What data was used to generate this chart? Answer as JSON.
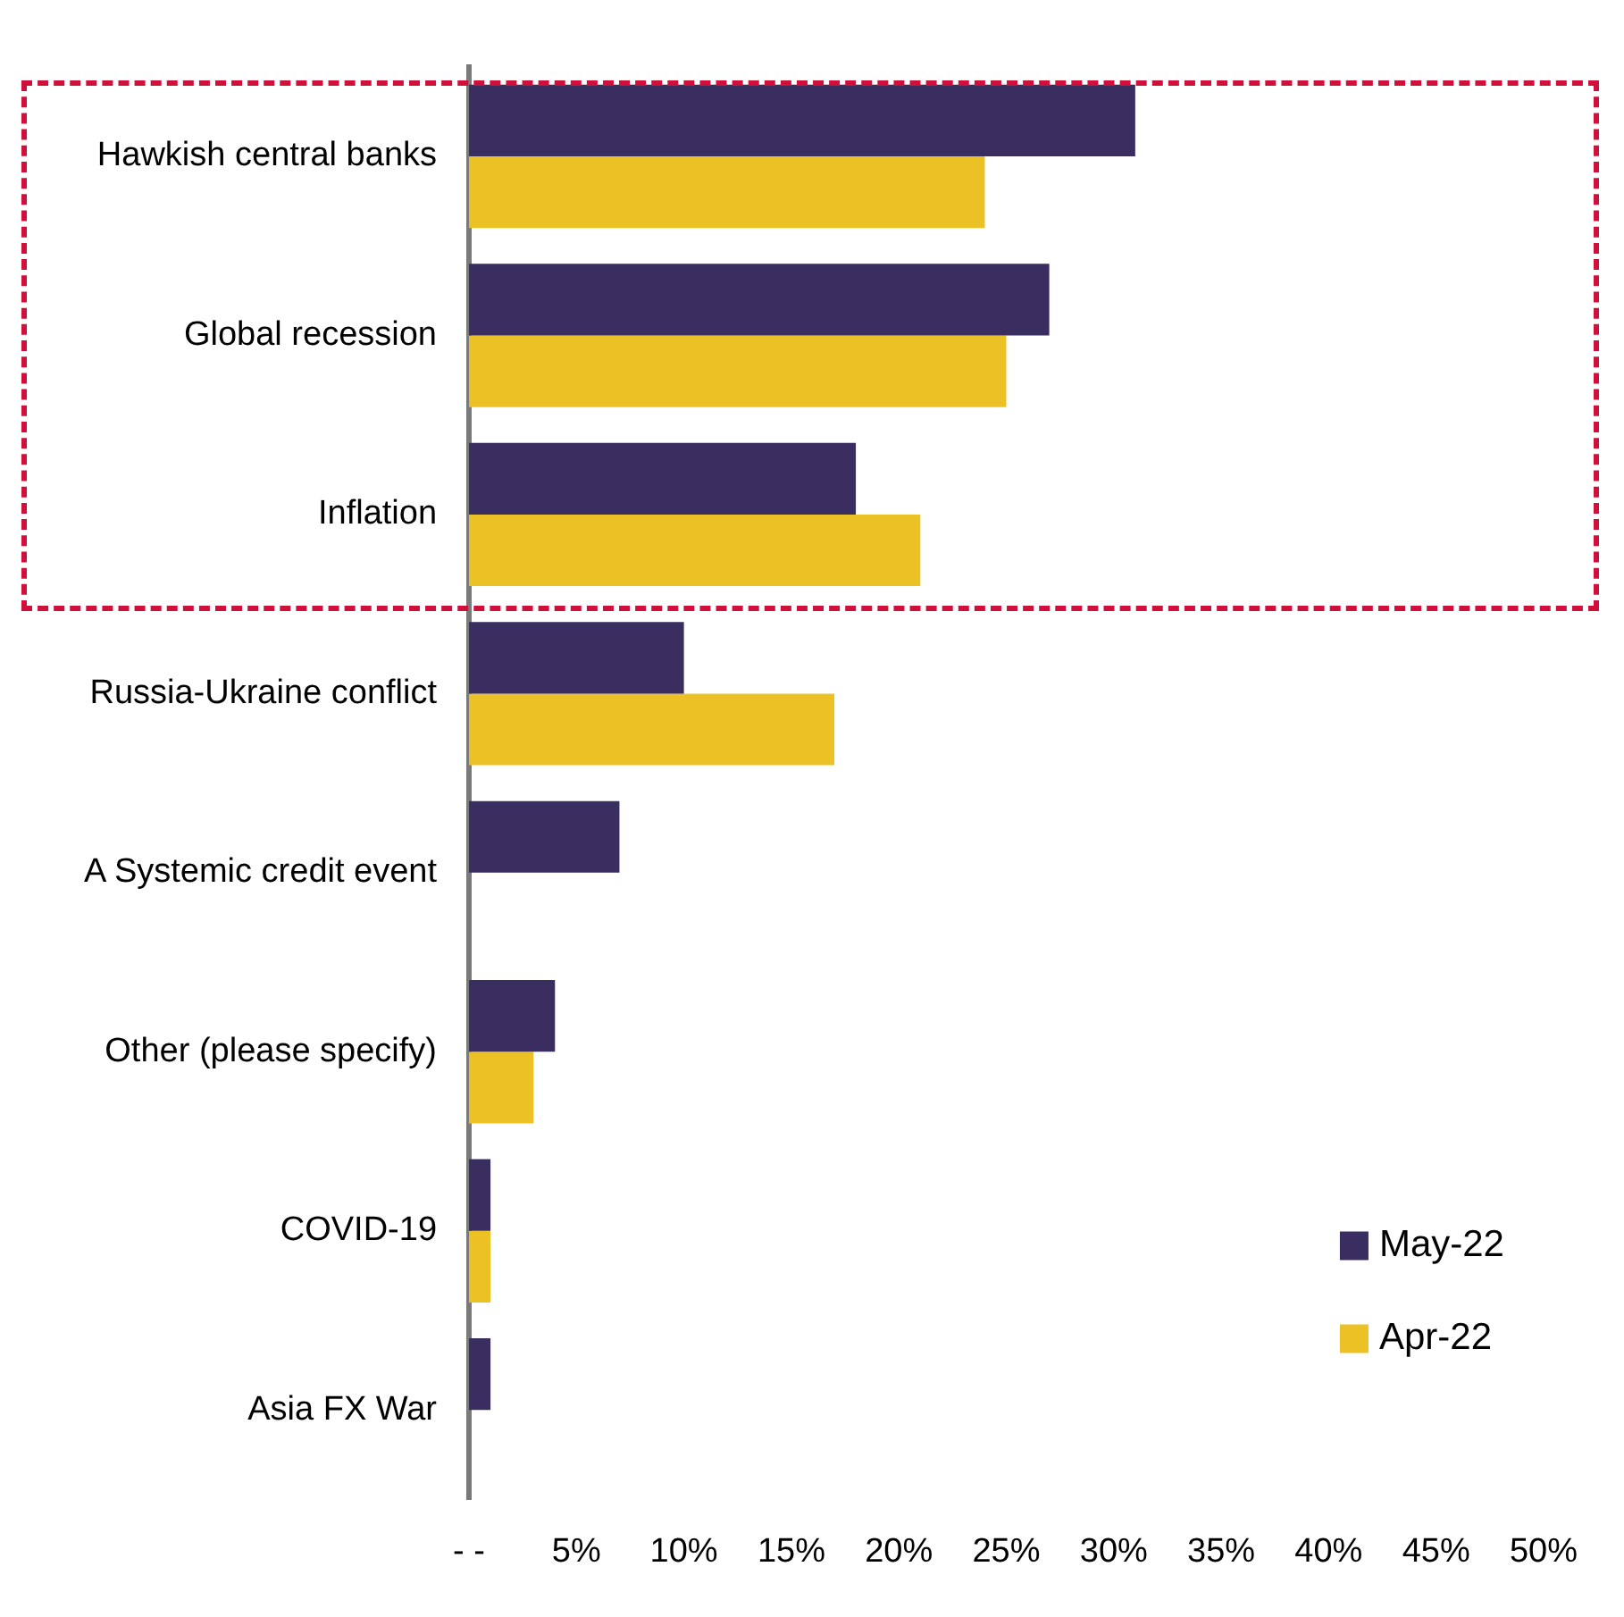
{
  "chart_data": {
    "type": "bar",
    "orientation": "horizontal",
    "categories": [
      "Hawkish central banks",
      "Global recession",
      "Inflation",
      "Russia-Ukraine conflict",
      "A Systemic credit event",
      "Other (please specify)",
      "COVID-19",
      "Asia FX War"
    ],
    "series": [
      {
        "name": "May-22",
        "color": "#3a2d60",
        "values": [
          31,
          27,
          18,
          10,
          7,
          4,
          1,
          1
        ]
      },
      {
        "name": "Apr-22",
        "color": "#ecc126",
        "values": [
          24,
          25,
          21,
          17,
          null,
          3,
          1,
          null
        ]
      }
    ],
    "xlim": [
      0,
      50
    ],
    "xticks": [
      {
        "value": 0,
        "label": "- -"
      },
      {
        "value": 5,
        "label": "5%"
      },
      {
        "value": 10,
        "label": "10%"
      },
      {
        "value": 15,
        "label": "15%"
      },
      {
        "value": 20,
        "label": "20%"
      },
      {
        "value": 25,
        "label": "25%"
      },
      {
        "value": 30,
        "label": "30%"
      },
      {
        "value": 35,
        "label": "35%"
      },
      {
        "value": 40,
        "label": "40%"
      },
      {
        "value": 45,
        "label": "45%"
      },
      {
        "value": 50,
        "label": "50%"
      }
    ],
    "grid": false,
    "legend": "bottom right"
  }
}
